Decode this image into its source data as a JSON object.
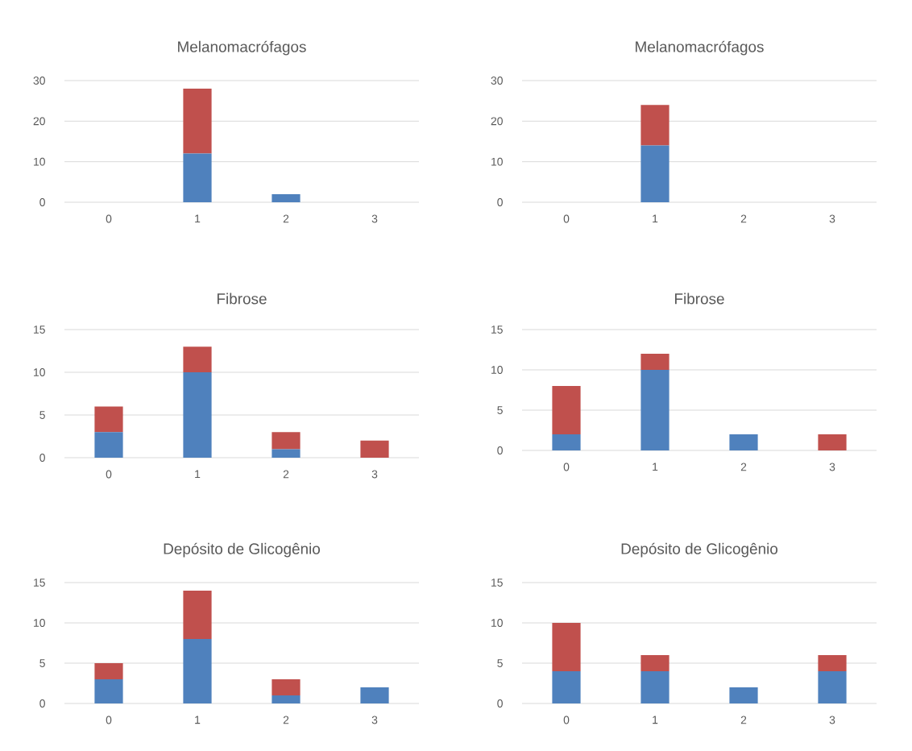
{
  "chart_data": [
    {
      "type": "bar",
      "title": "Melanomacrófagos",
      "categories": [
        "0",
        "1",
        "2",
        "3"
      ],
      "stacked": true,
      "ylim": [
        0,
        30
      ],
      "yticks": [
        0,
        10,
        20,
        30
      ],
      "grid": "y",
      "series": [
        {
          "color": "#4f81bd",
          "values": [
            0,
            12,
            2,
            0
          ]
        },
        {
          "color": "#c0504d",
          "values": [
            0,
            16,
            0,
            0
          ]
        }
      ]
    },
    {
      "type": "bar",
      "title": "Melanomacrófagos",
      "categories": [
        "0",
        "1",
        "2",
        "3"
      ],
      "stacked": true,
      "ylim": [
        0,
        30
      ],
      "yticks": [
        0,
        10,
        20,
        30
      ],
      "grid": "y",
      "series": [
        {
          "color": "#4f81bd",
          "values": [
            0,
            14,
            0,
            0
          ]
        },
        {
          "color": "#c0504d",
          "values": [
            0,
            10,
            0,
            0
          ]
        }
      ]
    },
    {
      "type": "bar",
      "title": "Fibrose",
      "categories": [
        "0",
        "1",
        "2",
        "3"
      ],
      "stacked": true,
      "ylim": [
        0,
        15
      ],
      "yticks": [
        0,
        5,
        10,
        15
      ],
      "grid": "y",
      "series": [
        {
          "color": "#4f81bd",
          "values": [
            3,
            10,
            1,
            0
          ]
        },
        {
          "color": "#c0504d",
          "values": [
            3,
            3,
            2,
            2
          ]
        }
      ]
    },
    {
      "type": "bar",
      "title": "Fibrose",
      "categories": [
        "0",
        "1",
        "2",
        "3"
      ],
      "stacked": true,
      "ylim": [
        0,
        15
      ],
      "yticks": [
        0,
        5,
        10,
        15
      ],
      "grid": "y",
      "series": [
        {
          "color": "#4f81bd",
          "values": [
            2,
            10,
            2,
            0
          ]
        },
        {
          "color": "#c0504d",
          "values": [
            6,
            2,
            0,
            2
          ]
        }
      ]
    },
    {
      "type": "bar",
      "title": "Depósito de Glicogênio",
      "categories": [
        "0",
        "1",
        "2",
        "3"
      ],
      "stacked": true,
      "ylim": [
        0,
        15
      ],
      "yticks": [
        0,
        5,
        10,
        15
      ],
      "grid": "y",
      "series": [
        {
          "color": "#4f81bd",
          "values": [
            3,
            8,
            1,
            2
          ]
        },
        {
          "color": "#c0504d",
          "values": [
            2,
            6,
            2,
            0
          ]
        }
      ]
    },
    {
      "type": "bar",
      "title": "Depósito de Glicogênio",
      "categories": [
        "0",
        "1",
        "2",
        "3"
      ],
      "stacked": true,
      "ylim": [
        0,
        15
      ],
      "yticks": [
        0,
        5,
        10,
        15
      ],
      "grid": "y",
      "series": [
        {
          "color": "#4f81bd",
          "values": [
            4,
            4,
            2,
            4
          ]
        },
        {
          "color": "#c0504d",
          "values": [
            6,
            2,
            0,
            2
          ]
        }
      ]
    }
  ]
}
